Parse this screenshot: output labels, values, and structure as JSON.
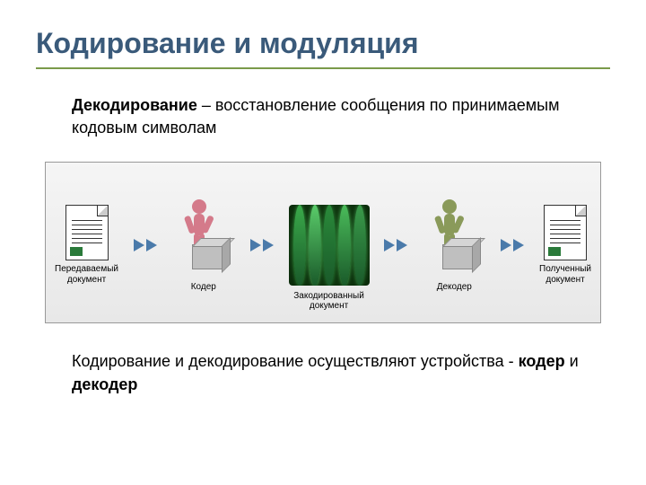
{
  "title": "Кодирование и модуляция",
  "title_color": "#3a5a7a",
  "underline_color": "#7a9a4a",
  "description_bold": "Декодирование",
  "description_rest": " – восстановление сообщения по принимаемым кодовым символам",
  "text_color": "#333333",
  "diagram": {
    "nodes": [
      {
        "label": "Передаваемый\nдокумент",
        "type": "document"
      },
      {
        "label": "Кодер",
        "type": "person",
        "color": "#d47a8a"
      },
      {
        "label": "Закодированный\nдокумент",
        "type": "signal"
      },
      {
        "label": "Декодер",
        "type": "person",
        "color": "#8a9a5a"
      },
      {
        "label": "Полученный\nдокумент",
        "type": "document"
      }
    ],
    "arrow_color": "#4a7aaa",
    "signal_colors": [
      "#3aaa4a",
      "#5acc6a",
      "#2a8a3a",
      "#4abb5a",
      "#3a9a4a"
    ],
    "box_bg": "#e8e8e8",
    "border_color": "#999999"
  },
  "footer_prefix": "Кодирование и декодирование осуществляют устройства - ",
  "footer_bold1": "кодер",
  "footer_mid": " и ",
  "footer_bold2": "декодер"
}
